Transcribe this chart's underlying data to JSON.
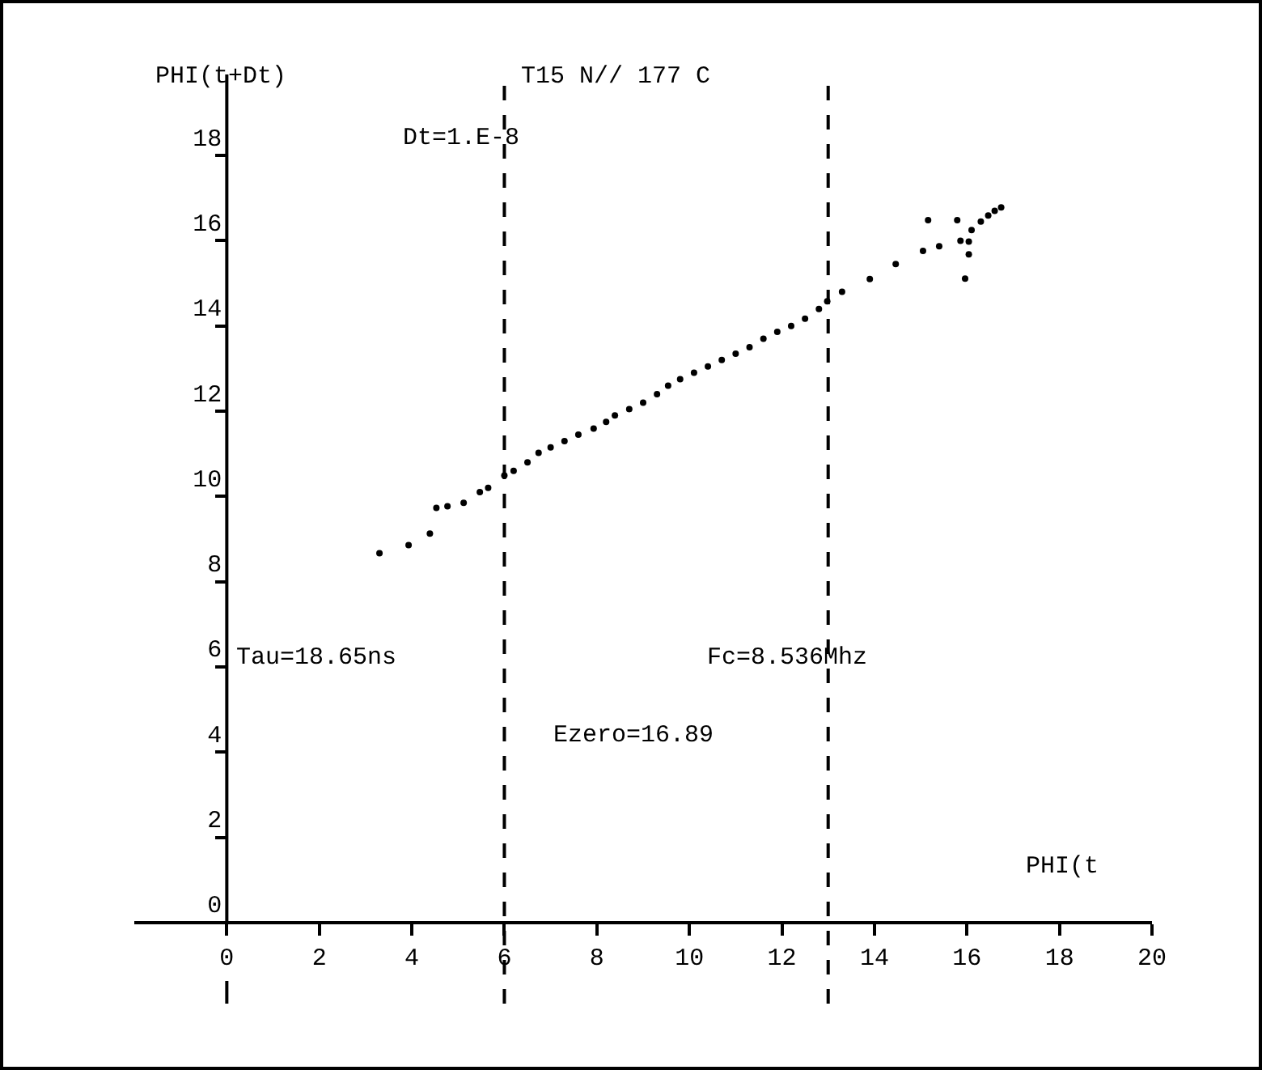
{
  "chart_data": {
    "type": "scatter",
    "title": "T15 N// 177 C",
    "xlabel": "PHI(t",
    "ylabel": "PHI(t+Dt)",
    "annotations": [
      "Dt=1.E-8",
      "Tau=18.65ns",
      "Fc=8.536Mhz",
      "Ezero=16.89"
    ],
    "series": [
      {
        "color": "#000000",
        "x": [
          3.3,
          3.93,
          4.39,
          4.53,
          4.77,
          5.12,
          5.47,
          5.65,
          6.0,
          6.2,
          6.5,
          6.74,
          7.0,
          7.3,
          7.6,
          7.93,
          8.2,
          8.39,
          8.7,
          9.0,
          9.3,
          9.54,
          9.8,
          10.1,
          10.4,
          10.7,
          11.0,
          11.3,
          11.6,
          11.9,
          12.2,
          12.5,
          12.8,
          12.98,
          13.3,
          13.9,
          14.46,
          15.05,
          15.16,
          15.4,
          15.79,
          15.86,
          15.96,
          16.04,
          16.04,
          16.1,
          16.3,
          16.46,
          16.6,
          16.74
        ],
        "values": [
          8.67,
          8.86,
          9.13,
          9.73,
          9.77,
          9.85,
          10.1,
          10.2,
          10.49,
          10.6,
          10.8,
          11.02,
          11.15,
          11.3,
          11.45,
          11.59,
          11.75,
          11.9,
          12.05,
          12.2,
          12.4,
          12.6,
          12.75,
          12.9,
          13.05,
          13.2,
          13.35,
          13.5,
          13.7,
          13.86,
          14.0,
          14.17,
          14.4,
          14.58,
          14.8,
          15.1,
          15.45,
          15.76,
          16.48,
          15.87,
          16.48,
          16.0,
          15.11,
          15.98,
          15.68,
          16.25,
          16.45,
          16.59,
          16.7,
          16.78
        ]
      }
    ],
    "xlim": [
      -2,
      20
    ],
    "ylim": [
      -1.9,
      19.9
    ],
    "xticks": [
      0,
      2,
      4,
      6,
      8,
      10,
      12,
      14,
      16,
      18,
      20
    ],
    "yticks": [
      0,
      2,
      4,
      6,
      8,
      10,
      12,
      14,
      16,
      18
    ],
    "ref_lines": [
      {
        "axis": "x",
        "value": 6,
        "color": "#000000",
        "line_style": "dashed"
      },
      {
        "axis": "x",
        "value": 13.0,
        "color": "#000000",
        "line_style": "dashed"
      }
    ],
    "grid": false,
    "marker": "circle",
    "line_style": "none"
  }
}
